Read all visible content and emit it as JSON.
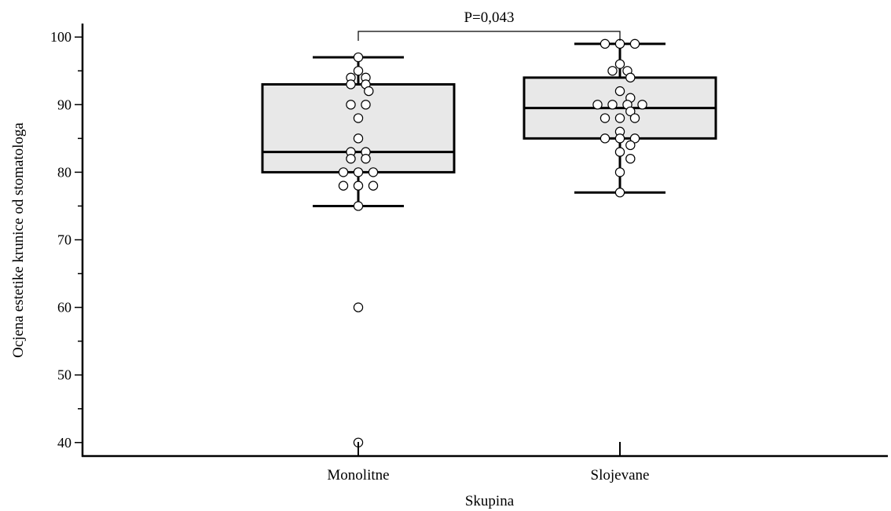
{
  "chart_data": {
    "type": "boxplot",
    "xlabel": "Skupina",
    "ylabel": "Ocjena estetike krunice od stomatologa",
    "ylim": [
      38,
      102
    ],
    "y_ticks": [
      40,
      50,
      60,
      70,
      80,
      90,
      100
    ],
    "y_minor_step": 5,
    "grid": false,
    "colors": {
      "box_fill": "#e8e8e8",
      "stroke": "#000000",
      "point_fill": "#ffffff"
    },
    "categories": [
      "Monolitne",
      "Slojevane"
    ],
    "groups": [
      {
        "category": "Monolitne",
        "whisker_low": 75,
        "q1": 80,
        "median": 83,
        "q3": 93,
        "whisker_high": 97,
        "points": [
          97,
          95,
          94,
          94,
          93,
          93,
          92,
          90,
          90,
          88,
          85,
          83,
          83,
          82,
          82,
          80,
          80,
          80,
          78,
          78,
          78,
          75,
          60,
          40
        ]
      },
      {
        "category": "Slojevane",
        "whisker_low": 77,
        "q1": 85,
        "median": 89.5,
        "q3": 94,
        "whisker_high": 99,
        "points": [
          99,
          99,
          99,
          96,
          95,
          95,
          94,
          92,
          91,
          90,
          90,
          90,
          90,
          89,
          88,
          88,
          88,
          86,
          85,
          85,
          85,
          84,
          83,
          82,
          80,
          77
        ]
      }
    ],
    "annotation": {
      "text": "P=0,043",
      "between": [
        "Monolitne",
        "Slojevane"
      ]
    }
  }
}
